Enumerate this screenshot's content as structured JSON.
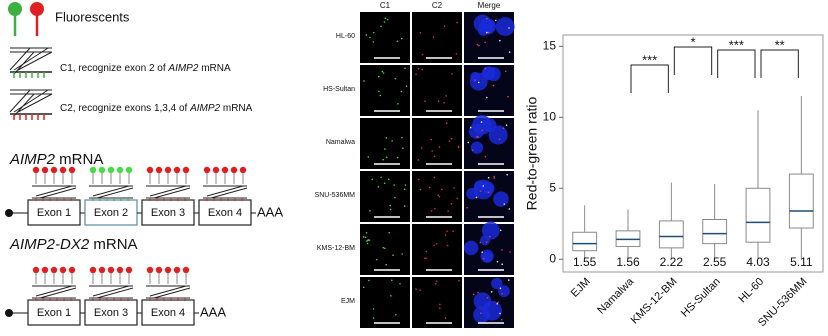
{
  "legend": {
    "title": "Fluorescents"
  },
  "probes": [
    {
      "parts": [
        "C1, recognize exon 2 of ",
        "AIMP2",
        " mRNA"
      ]
    },
    {
      "parts": [
        "C2, recognize exons 1,3,4 of ",
        "AIMP2",
        " mRNA"
      ]
    }
  ],
  "transcripts": [
    {
      "name": [
        "AIMP2",
        " mRNA"
      ],
      "exons": [
        "Exon 1",
        "Exon 2",
        "Exon 3",
        "Exon 4"
      ],
      "tail": "AAA"
    },
    {
      "name": [
        "AIMP2-DX2",
        " mRNA"
      ],
      "exons": [
        "Exon 1",
        "Exon 3",
        "Exon 4"
      ],
      "tail": "AAA"
    }
  ],
  "images": {
    "columns": [
      "C1",
      "C2",
      "Merge"
    ],
    "rows": [
      "HL-60",
      "HS-Sultan",
      "Namalwa",
      "SNU-536MM",
      "KMS-12-BM",
      "EJM"
    ]
  },
  "chart_data": {
    "type": "box",
    "ylabel": "Red-to-green ratio",
    "categories": [
      "EJM",
      "Namalwa",
      "KMS-12-BM",
      "HS-Sultan",
      "HL-60",
      "SNU-536MM"
    ],
    "whisker_low": [
      0,
      0,
      0,
      0,
      0,
      0
    ],
    "q1": [
      0.6,
      0.9,
      0.8,
      1.1,
      1.2,
      2.2
    ],
    "median": [
      1.1,
      1.4,
      1.6,
      1.8,
      2.6,
      3.4
    ],
    "q3": [
      1.9,
      2.0,
      2.7,
      2.8,
      5.0,
      6.0
    ],
    "whisker_high": [
      3.8,
      3.5,
      5.4,
      5.3,
      10.5,
      11.5
    ],
    "value_labels": [
      "1.55",
      "1.56",
      "2.22",
      "2.55",
      "4.03",
      "5.11"
    ],
    "significance": [
      {
        "pair": [
          "Namalwa",
          "KMS-12-BM"
        ],
        "label": "***"
      },
      {
        "pair": [
          "KMS-12-BM",
          "HS-Sultan"
        ],
        "label": "*"
      },
      {
        "pair": [
          "HS-Sultan",
          "HL-60"
        ],
        "label": "***"
      },
      {
        "pair": [
          "HL-60",
          "SNU-536MM"
        ],
        "label": "**"
      }
    ],
    "ylim": [
      -0.9,
      15.8
    ],
    "yticks": [
      0,
      5,
      10,
      15
    ],
    "box_color": "#8a8a8a",
    "median_color": "#1f4e79"
  }
}
